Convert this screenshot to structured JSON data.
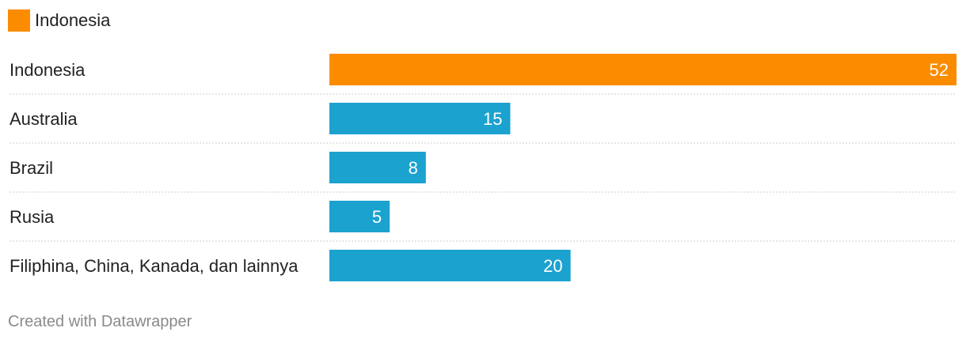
{
  "legend": {
    "label": "Indonesia",
    "color": "#fb8c00"
  },
  "footer": {
    "credit": "Created with Datawrapper"
  },
  "chart_data": {
    "type": "bar",
    "orientation": "horizontal",
    "categories": [
      "Indonesia",
      "Australia",
      "Brazil",
      "Rusia",
      "Filiphina, China, Kanada, dan lainnya"
    ],
    "values": [
      52,
      15,
      8,
      5,
      20
    ],
    "highlight_category": "Indonesia",
    "highlight_color": "#fb8c00",
    "bar_color": "#1ba2cf",
    "xlim": [
      0,
      52
    ],
    "grid": false,
    "legend_position": "top-left",
    "title": "",
    "xlabel": "",
    "ylabel": ""
  }
}
